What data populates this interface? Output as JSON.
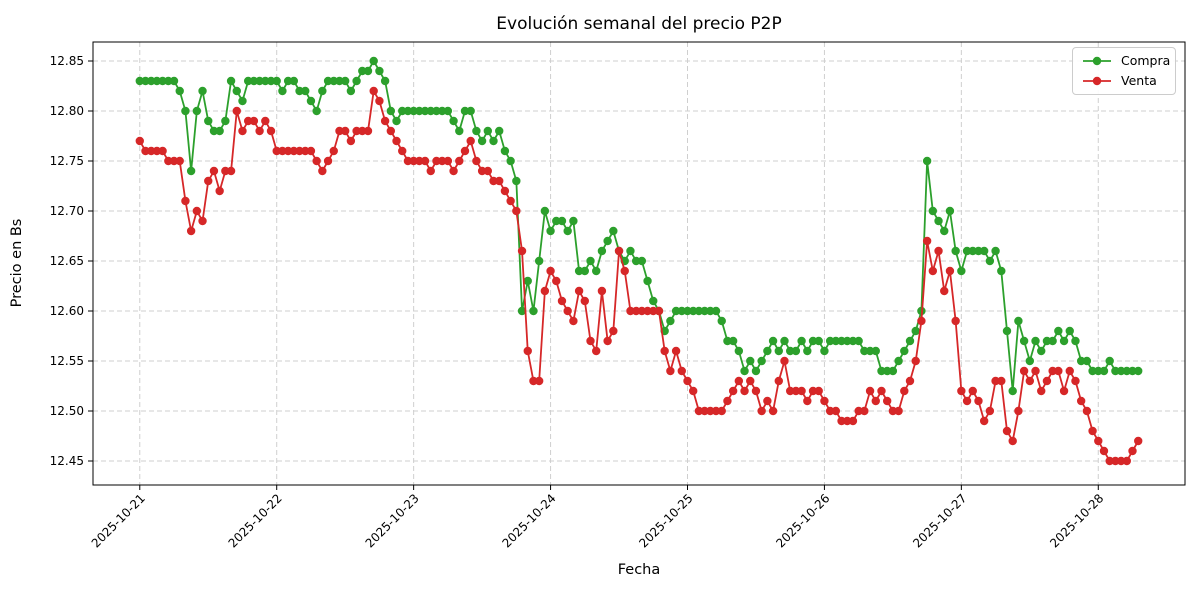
{
  "figure": {
    "title": "Evolución semanal del precio P2P",
    "xlabel": "Fecha",
    "ylabel": "Precio en Bs"
  },
  "legend": {
    "position": "upper right",
    "items": [
      {
        "label": "Compra",
        "color": "#2ca02c"
      },
      {
        "label": "Venta",
        "color": "#d62728"
      }
    ]
  },
  "chart_data": {
    "type": "line",
    "title": "Evolución semanal del precio P2P",
    "xlabel": "Fecha",
    "ylabel": "Precio en Bs",
    "grid": true,
    "grid_style": "dashed",
    "marker": "o",
    "x_unit": "hours since 2025-10-21 00:00, one point per hour",
    "x_step_hours": 1,
    "x_tick_hours": [
      0,
      24,
      48,
      72,
      96,
      120,
      144,
      168
    ],
    "x_tick_labels": [
      "2025-10-21",
      "2025-10-22",
      "2025-10-23",
      "2025-10-24",
      "2025-10-25",
      "2025-10-26",
      "2025-10-27",
      "2025-10-28"
    ],
    "x_tick_rotation_deg": 45,
    "y_ticks": [
      12.45,
      12.5,
      12.55,
      12.6,
      12.65,
      12.7,
      12.75,
      12.8,
      12.85
    ],
    "ylim": [
      12.426,
      12.869
    ],
    "xlim_hours": [
      -8.2,
      183.2
    ],
    "series": [
      {
        "name": "Compra",
        "color": "#2ca02c",
        "values": [
          12.83,
          12.83,
          12.83,
          12.83,
          12.83,
          12.83,
          12.83,
          12.82,
          12.8,
          12.74,
          12.8,
          12.82,
          12.79,
          12.78,
          12.78,
          12.79,
          12.83,
          12.82,
          12.81,
          12.83,
          12.83,
          12.83,
          12.83,
          12.83,
          12.83,
          12.82,
          12.83,
          12.83,
          12.82,
          12.82,
          12.81,
          12.8,
          12.82,
          12.83,
          12.83,
          12.83,
          12.83,
          12.82,
          12.83,
          12.84,
          12.84,
          12.85,
          12.84,
          12.83,
          12.8,
          12.79,
          12.8,
          12.8,
          12.8,
          12.8,
          12.8,
          12.8,
          12.8,
          12.8,
          12.8,
          12.79,
          12.78,
          12.8,
          12.8,
          12.78,
          12.77,
          12.78,
          12.77,
          12.78,
          12.76,
          12.75,
          12.73,
          12.6,
          12.63,
          12.6,
          12.65,
          12.7,
          12.68,
          12.69,
          12.69,
          12.68,
          12.69,
          12.64,
          12.64,
          12.65,
          12.64,
          12.66,
          12.67,
          12.68,
          12.66,
          12.65,
          12.66,
          12.65,
          12.65,
          12.63,
          12.61,
          12.6,
          12.58,
          12.59,
          12.6,
          12.6,
          12.6,
          12.6,
          12.6,
          12.6,
          12.6,
          12.6,
          12.59,
          12.57,
          12.57,
          12.56,
          12.54,
          12.55,
          12.54,
          12.55,
          12.56,
          12.57,
          12.56,
          12.57,
          12.56,
          12.56,
          12.57,
          12.56,
          12.57,
          12.57,
          12.56,
          12.57,
          12.57,
          12.57,
          12.57,
          12.57,
          12.57,
          12.56,
          12.56,
          12.56,
          12.54,
          12.54,
          12.54,
          12.55,
          12.56,
          12.57,
          12.58,
          12.6,
          12.75,
          12.7,
          12.69,
          12.68,
          12.7,
          12.66,
          12.64,
          12.66,
          12.66,
          12.66,
          12.66,
          12.65,
          12.66,
          12.64,
          12.58,
          12.52,
          12.59,
          12.57,
          12.55,
          12.57,
          12.56,
          12.57,
          12.57,
          12.58,
          12.57,
          12.58,
          12.57,
          12.55,
          12.55,
          12.54,
          12.54,
          12.54,
          12.55,
          12.54,
          12.54,
          12.54,
          12.54,
          12.54
        ]
      },
      {
        "name": "Venta",
        "color": "#d62728",
        "values": [
          12.77,
          12.76,
          12.76,
          12.76,
          12.76,
          12.75,
          12.75,
          12.75,
          12.71,
          12.68,
          12.7,
          12.69,
          12.73,
          12.74,
          12.72,
          12.74,
          12.74,
          12.8,
          12.78,
          12.79,
          12.79,
          12.78,
          12.79,
          12.78,
          12.76,
          12.76,
          12.76,
          12.76,
          12.76,
          12.76,
          12.76,
          12.75,
          12.74,
          12.75,
          12.76,
          12.78,
          12.78,
          12.77,
          12.78,
          12.78,
          12.78,
          12.82,
          12.81,
          12.79,
          12.78,
          12.77,
          12.76,
          12.75,
          12.75,
          12.75,
          12.75,
          12.74,
          12.75,
          12.75,
          12.75,
          12.74,
          12.75,
          12.76,
          12.77,
          12.75,
          12.74,
          12.74,
          12.73,
          12.73,
          12.72,
          12.71,
          12.7,
          12.66,
          12.56,
          12.53,
          12.53,
          12.62,
          12.64,
          12.63,
          12.61,
          12.6,
          12.59,
          12.62,
          12.61,
          12.57,
          12.56,
          12.62,
          12.57,
          12.58,
          12.66,
          12.64,
          12.6,
          12.6,
          12.6,
          12.6,
          12.6,
          12.6,
          12.56,
          12.54,
          12.56,
          12.54,
          12.53,
          12.52,
          12.5,
          12.5,
          12.5,
          12.5,
          12.5,
          12.51,
          12.52,
          12.53,
          12.52,
          12.53,
          12.52,
          12.5,
          12.51,
          12.5,
          12.53,
          12.55,
          12.52,
          12.52,
          12.52,
          12.51,
          12.52,
          12.52,
          12.51,
          12.5,
          12.5,
          12.49,
          12.49,
          12.49,
          12.5,
          12.5,
          12.52,
          12.51,
          12.52,
          12.51,
          12.5,
          12.5,
          12.52,
          12.53,
          12.55,
          12.59,
          12.67,
          12.64,
          12.66,
          12.62,
          12.64,
          12.59,
          12.52,
          12.51,
          12.52,
          12.51,
          12.49,
          12.5,
          12.53,
          12.53,
          12.48,
          12.47,
          12.5,
          12.54,
          12.53,
          12.54,
          12.52,
          12.53,
          12.54,
          12.54,
          12.52,
          12.54,
          12.53,
          12.51,
          12.5,
          12.48,
          12.47,
          12.46,
          12.45,
          12.45,
          12.45,
          12.45,
          12.46,
          12.47
        ]
      }
    ]
  }
}
